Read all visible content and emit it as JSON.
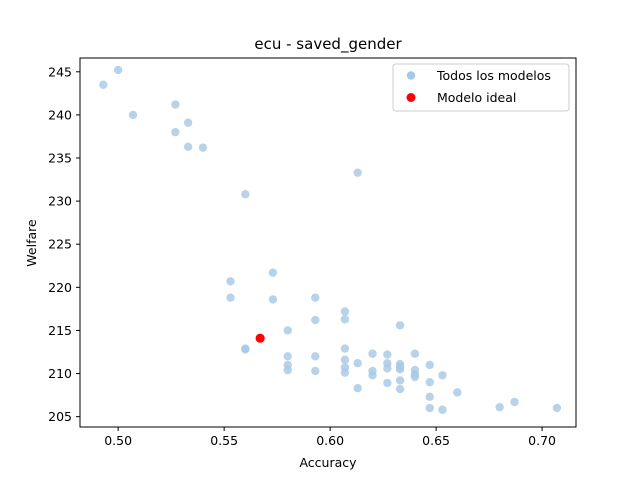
{
  "chart_data": {
    "type": "scatter",
    "title": "ecu - saved_gender",
    "xlabel": "Accuracy",
    "ylabel": "Welfare",
    "xlim": [
      0.482,
      0.716
    ],
    "ylim": [
      203.8,
      246.6
    ],
    "xticks": [
      0.5,
      0.55,
      0.6,
      0.65,
      0.7
    ],
    "xtick_labels": [
      "0.50",
      "0.55",
      "0.60",
      "0.65",
      "0.70"
    ],
    "yticks": [
      205,
      210,
      215,
      220,
      225,
      230,
      235,
      240,
      245
    ],
    "ytick_labels": [
      "205",
      "210",
      "215",
      "220",
      "225",
      "230",
      "235",
      "240",
      "245"
    ],
    "grid": false,
    "legend_position": "top-right",
    "series": [
      {
        "name": "Todos los modelos",
        "color": "#a6c8e3",
        "alpha": 0.8,
        "points": [
          [
            0.493,
            243.5
          ],
          [
            0.5,
            245.2
          ],
          [
            0.507,
            240.0
          ],
          [
            0.527,
            241.2
          ],
          [
            0.527,
            238.0
          ],
          [
            0.533,
            239.1
          ],
          [
            0.533,
            236.3
          ],
          [
            0.54,
            236.2
          ],
          [
            0.56,
            230.8
          ],
          [
            0.613,
            233.3
          ],
          [
            0.553,
            220.7
          ],
          [
            0.573,
            221.7
          ],
          [
            0.553,
            218.8
          ],
          [
            0.573,
            218.6
          ],
          [
            0.593,
            218.8
          ],
          [
            0.607,
            217.2
          ],
          [
            0.607,
            216.3
          ],
          [
            0.593,
            216.2
          ],
          [
            0.58,
            215.0
          ],
          [
            0.633,
            215.6
          ],
          [
            0.56,
            212.9
          ],
          [
            0.56,
            212.8
          ],
          [
            0.607,
            212.9
          ],
          [
            0.58,
            212.0
          ],
          [
            0.593,
            212.0
          ],
          [
            0.607,
            211.6
          ],
          [
            0.62,
            212.3
          ],
          [
            0.627,
            212.2
          ],
          [
            0.64,
            212.3
          ],
          [
            0.613,
            211.2
          ],
          [
            0.627,
            211.2
          ],
          [
            0.633,
            211.1
          ],
          [
            0.647,
            211.0
          ],
          [
            0.58,
            211.0
          ],
          [
            0.58,
            210.4
          ],
          [
            0.593,
            210.3
          ],
          [
            0.607,
            210.7
          ],
          [
            0.607,
            210.1
          ],
          [
            0.62,
            210.3
          ],
          [
            0.62,
            209.8
          ],
          [
            0.627,
            210.6
          ],
          [
            0.633,
            210.8
          ],
          [
            0.633,
            210.5
          ],
          [
            0.64,
            210.4
          ],
          [
            0.64,
            209.9
          ],
          [
            0.64,
            209.6
          ],
          [
            0.653,
            209.8
          ],
          [
            0.633,
            209.2
          ],
          [
            0.647,
            209.0
          ],
          [
            0.627,
            208.9
          ],
          [
            0.613,
            208.3
          ],
          [
            0.633,
            208.2
          ],
          [
            0.66,
            207.8
          ],
          [
            0.647,
            207.3
          ],
          [
            0.647,
            206.0
          ],
          [
            0.653,
            205.8
          ],
          [
            0.68,
            206.1
          ],
          [
            0.687,
            206.7
          ],
          [
            0.707,
            206.0
          ]
        ]
      },
      {
        "name": "Modelo ideal",
        "color": "#ff0000",
        "alpha": 1,
        "points": [
          [
            0.567,
            214.1
          ]
        ]
      }
    ]
  }
}
